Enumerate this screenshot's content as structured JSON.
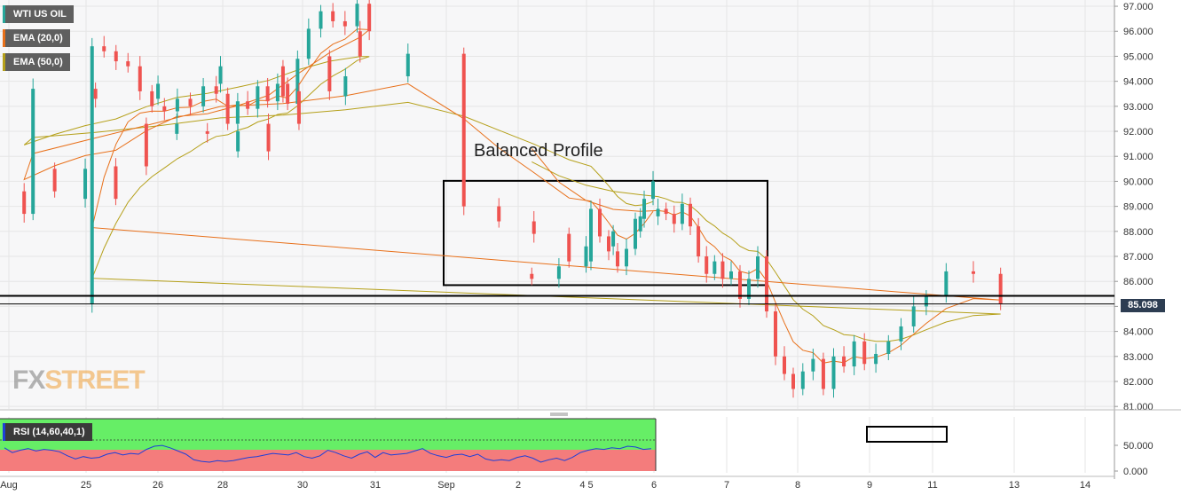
{
  "legend": {
    "symbol": "WTI US OIL",
    "ema20": "EMA (20,0)",
    "ema50": "EMA (50,0)",
    "rsi": "RSI (14,60,40,1)"
  },
  "annotation": "Balanced Profile",
  "watermark": {
    "part1": "FX",
    "part2": "STREET"
  },
  "last_price_label": "85.098",
  "colors": {
    "up": "#26a69a",
    "down": "#ef5350",
    "ema20": "#e8701a",
    "ema50": "#b5a01a",
    "rsi_line": "#1e3fd8",
    "rsi_over": "#66ee66",
    "rsi_under": "#f47c7c",
    "grid": "#e6e6e6",
    "box": "#000000"
  },
  "chart_data": [
    {
      "type": "candlestick",
      "title": "WTI US OIL",
      "x_ticks": [
        "Aug",
        "25",
        "26",
        "28",
        "30",
        "31",
        "Sep",
        "2",
        "4 5",
        "6",
        "7",
        "8",
        "9",
        "11",
        "13",
        "14"
      ],
      "y_ticks": [
        "97.000",
        "96.000",
        "95.000",
        "94.000",
        "93.000",
        "92.000",
        "91.000",
        "90.000",
        "89.000",
        "88.000",
        "87.000",
        "86.000",
        "85.000",
        "84.000",
        "83.000",
        "82.000",
        "81.000"
      ],
      "ylim": [
        80.9,
        97.25
      ],
      "series": [
        {
          "name": "WTI US OIL",
          "kind": "candles",
          "close_path": [
            [
              "Aug",
              93.7
            ],
            [
              "Aug",
              93.3
            ],
            [
              "Aug",
              93.9
            ],
            [
              "Aug",
              94.6
            ],
            [
              "Aug",
              93.4
            ],
            [
              "Aug",
              94.2
            ],
            [
              "Aug",
              95.1
            ],
            [
              "25",
              95.4
            ],
            [
              "25",
              95.2
            ],
            [
              "25",
              94.8
            ],
            [
              "25",
              94.6
            ],
            [
              "25",
              93.6
            ],
            [
              "25",
              93.0
            ],
            [
              "26",
              92.8
            ],
            [
              "26",
              93.3
            ],
            [
              "26",
              93.0
            ],
            [
              "26",
              93.8
            ],
            [
              "26",
              93.5
            ],
            [
              "28",
              92.3
            ],
            [
              "28",
              93.2
            ],
            [
              "28",
              92.9
            ],
            [
              "28",
              93.8
            ],
            [
              "28",
              93.2
            ],
            [
              "28",
              93.9
            ],
            [
              "28",
              93.1
            ],
            [
              "28",
              94.9
            ],
            [
              "30",
              96.1
            ],
            [
              "30",
              96.8
            ],
            [
              "30",
              96.4
            ],
            [
              "30",
              96.2
            ],
            [
              "30",
              97.1
            ],
            [
              "30",
              96.0
            ],
            [
              "31",
              95.0
            ],
            [
              "31",
              93.6
            ],
            [
              "31",
              92.3
            ],
            [
              "31",
              91.2
            ],
            [
              "31",
              92.0
            ],
            [
              "31",
              91.9
            ],
            [
              "31",
              92.3
            ],
            [
              "31",
              90.6
            ],
            [
              "31",
              89.3
            ],
            [
              "31",
              90.5
            ],
            [
              "31",
              89.6
            ],
            [
              "31",
              88.7
            ],
            [
              "Sep",
              89.0
            ],
            [
              "Sep",
              88.4
            ],
            [
              "Sep",
              87.9
            ],
            [
              "Sep",
              86.8
            ],
            [
              "2",
              86.1
            ],
            [
              "2",
              86.6
            ],
            [
              "2",
              87.4
            ],
            [
              "2",
              88.0
            ],
            [
              "2",
              88.6
            ],
            [
              "4 5",
              88.9
            ],
            [
              "4 5",
              87.8
            ],
            [
              "4 5",
              87.2
            ],
            [
              "4 5",
              86.6
            ],
            [
              "4 5",
              87.3
            ],
            [
              "4 5",
              88.5
            ],
            [
              "4 5",
              89.3
            ],
            [
              "4 5",
              90.0
            ],
            [
              "6",
              88.9
            ],
            [
              "6",
              88.7
            ],
            [
              "6",
              88.3
            ],
            [
              "6",
              89.1
            ],
            [
              "6",
              88.2
            ],
            [
              "6",
              87.0
            ],
            [
              "6",
              86.3
            ],
            [
              "6",
              86.8
            ],
            [
              "6",
              86.1
            ],
            [
              "7",
              86.4
            ],
            [
              "7",
              85.3
            ],
            [
              "7",
              86.1
            ],
            [
              "7",
              87.0
            ],
            [
              "7",
              84.8
            ],
            [
              "7",
              83.0
            ],
            [
              "7",
              82.3
            ],
            [
              "7",
              81.7
            ],
            [
              "8",
              82.4
            ],
            [
              "8",
              82.9
            ],
            [
              "8",
              81.7
            ],
            [
              "8",
              83.0
            ],
            [
              "8",
              82.6
            ],
            [
              "8",
              83.6
            ],
            [
              "8",
              82.7
            ],
            [
              "9",
              83.1
            ],
            [
              "9",
              83.6
            ],
            [
              "9",
              84.2
            ],
            [
              "9",
              85.0
            ],
            [
              "9",
              85.4
            ],
            [
              "11",
              86.4
            ],
            [
              "11",
              86.3
            ],
            [
              "11",
              85.1
            ]
          ]
        },
        {
          "name": "EMA (20,0)",
          "kind": "line"
        },
        {
          "name": "EMA (50,0)",
          "kind": "line"
        }
      ],
      "annotations": [
        {
          "text": "Balanced Profile",
          "type": "box",
          "price_range": [
            85.85,
            90.02
          ],
          "time_range": [
            "Sep",
            "7"
          ]
        },
        {
          "type": "hline",
          "price": 85.42
        },
        {
          "type": "hline",
          "price": 85.1
        }
      ],
      "last_price": 85.098
    },
    {
      "type": "line",
      "title": "RSI (14,60,40,1)",
      "y_ticks": [
        "50.000",
        "0.000"
      ],
      "levels": {
        "overbought": 60,
        "oversold": 40
      },
      "series": [
        {
          "name": "RSI (14,60,40,1)",
          "values": [
            58,
            52,
            55,
            57,
            54,
            56,
            55,
            53,
            48,
            44,
            47,
            45,
            46,
            50,
            52,
            49,
            51,
            50,
            56,
            60,
            61,
            58,
            54,
            50,
            43,
            41,
            40,
            42,
            41,
            42,
            44,
            46,
            47,
            49,
            51,
            50,
            49,
            52,
            47,
            45,
            48,
            55,
            52,
            48,
            45,
            50,
            53,
            46,
            52,
            49,
            50,
            51,
            54,
            57,
            51,
            48,
            46,
            49,
            50,
            47,
            50,
            44,
            42,
            43,
            42,
            46,
            48,
            45,
            40,
            43,
            45,
            42,
            46,
            52,
            55,
            57,
            56,
            58,
            57,
            60,
            59,
            56,
            57
          ]
        }
      ],
      "annotations": [
        {
          "type": "box",
          "region": "latest"
        }
      ]
    }
  ]
}
